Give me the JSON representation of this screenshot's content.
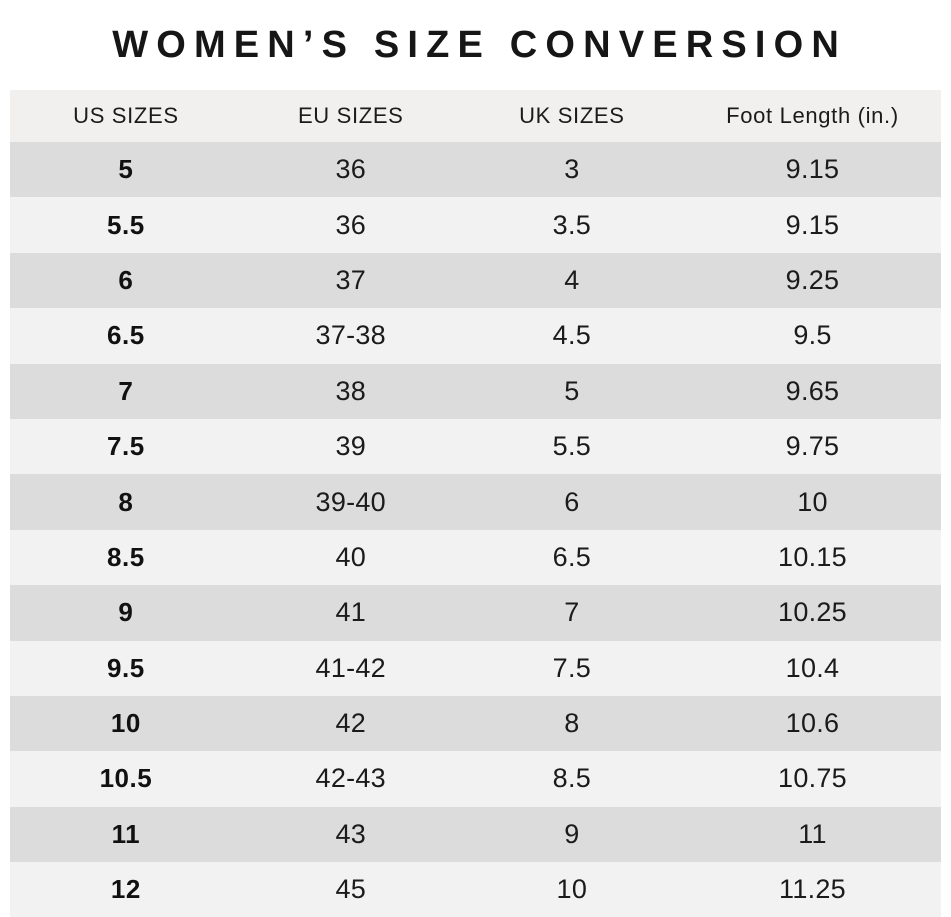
{
  "title": "WOMEN’S SIZE CONVERSION",
  "table": {
    "headers": [
      "US SIZES",
      "EU SIZES",
      "UK SIZES",
      "Foot Length (in.)"
    ],
    "rows": [
      [
        "5",
        "36",
        "3",
        "9.15"
      ],
      [
        "5.5",
        "36",
        "3.5",
        "9.15"
      ],
      [
        "6",
        "37",
        "4",
        "9.25"
      ],
      [
        "6.5",
        "37-38",
        "4.5",
        "9.5"
      ],
      [
        "7",
        "38",
        "5",
        "9.65"
      ],
      [
        "7.5",
        "39",
        "5.5",
        "9.75"
      ],
      [
        "8",
        "39-40",
        "6",
        "10"
      ],
      [
        "8.5",
        "40",
        "6.5",
        "10.15"
      ],
      [
        "9",
        "41",
        "7",
        "10.25"
      ],
      [
        "9.5",
        "41-42",
        "7.5",
        "10.4"
      ],
      [
        "10",
        "42",
        "8",
        "10.6"
      ],
      [
        "10.5",
        "42-43",
        "8.5",
        "10.75"
      ],
      [
        "11",
        "43",
        "9",
        "11"
      ],
      [
        "12",
        "45",
        "10",
        "11.25"
      ]
    ]
  },
  "chart_data": {
    "type": "table",
    "title": "WOMEN’S SIZE CONVERSION",
    "columns": [
      "US SIZES",
      "EU SIZES",
      "UK SIZES",
      "Foot Length (in.)"
    ],
    "rows": [
      [
        "5",
        "36",
        "3",
        "9.15"
      ],
      [
        "5.5",
        "36",
        "3.5",
        "9.15"
      ],
      [
        "6",
        "37",
        "4",
        "9.25"
      ],
      [
        "6.5",
        "37-38",
        "4.5",
        "9.5"
      ],
      [
        "7",
        "38",
        "5",
        "9.65"
      ],
      [
        "7.5",
        "39",
        "5.5",
        "9.75"
      ],
      [
        "8",
        "39-40",
        "6",
        "10"
      ],
      [
        "8.5",
        "40",
        "6.5",
        "10.15"
      ],
      [
        "9",
        "41",
        "7",
        "10.25"
      ],
      [
        "9.5",
        "41-42",
        "7.5",
        "10.4"
      ],
      [
        "10",
        "42",
        "8",
        "10.6"
      ],
      [
        "10.5",
        "42-43",
        "8.5",
        "10.75"
      ],
      [
        "11",
        "43",
        "9",
        "11"
      ],
      [
        "12",
        "45",
        "10",
        "11.25"
      ]
    ],
    "layout": {
      "striped": true,
      "first_data_row_shade": "dark",
      "header_position": "top"
    }
  },
  "colors": {
    "background": "#ffffff",
    "header_bg": "#f1f0ee",
    "row_dark": "#dcdcdc",
    "row_light": "#f2f2f2",
    "text": "#1b1b1b"
  }
}
